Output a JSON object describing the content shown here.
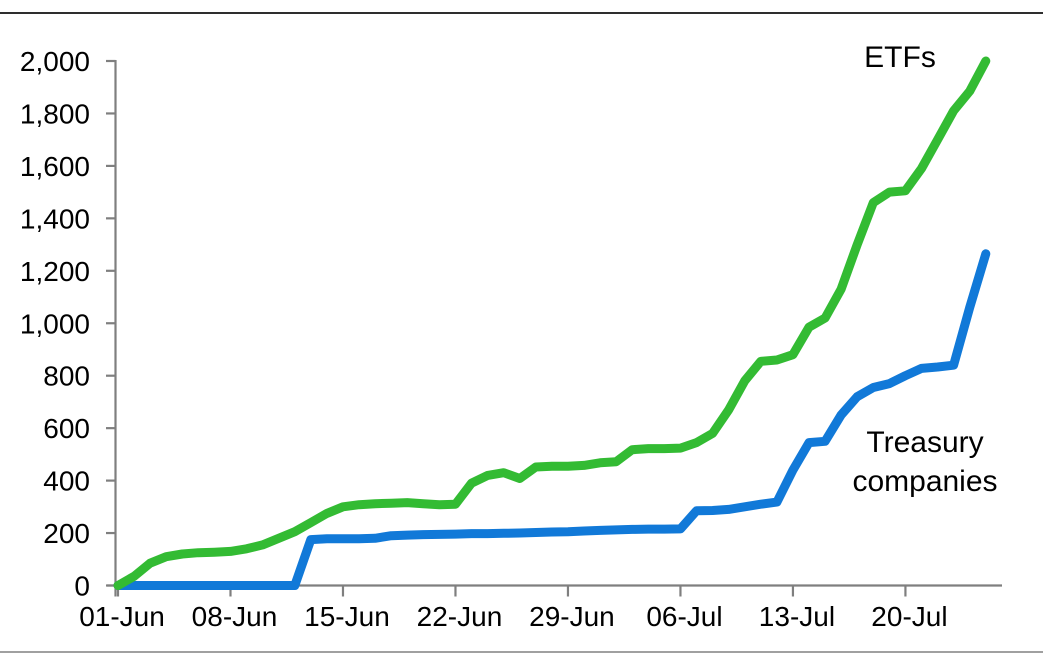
{
  "page": {
    "background": "#ffffff",
    "top_border_color": "#2e2e2e",
    "bottom_border_color": "#a0a0a0"
  },
  "chart_data": {
    "type": "line",
    "title": "",
    "xlabel": "",
    "ylabel": "",
    "grid": false,
    "legend_position": "inline-labels",
    "x_axis": {
      "tick_labels": [
        "01-Jun",
        "08-Jun",
        "15-Jun",
        "22-Jun",
        "29-Jun",
        "06-Jul",
        "13-Jul",
        "20-Jul"
      ],
      "tick_day_indices": [
        0,
        7,
        14,
        21,
        28,
        35,
        42,
        49
      ]
    },
    "y_axis": {
      "min": 0,
      "max": 2000,
      "tick_step": 200,
      "tick_values": [
        0,
        200,
        400,
        600,
        800,
        1000,
        1200,
        1400,
        1600,
        1800,
        2000
      ],
      "tick_labels": [
        "0",
        "200",
        "400",
        "600",
        "800",
        "1,000",
        "1,200",
        "1,400",
        "1,600",
        "1,800",
        "2,000"
      ]
    },
    "x": [
      "01-Jun",
      "02-Jun",
      "03-Jun",
      "04-Jun",
      "05-Jun",
      "06-Jun",
      "07-Jun",
      "08-Jun",
      "09-Jun",
      "10-Jun",
      "11-Jun",
      "12-Jun",
      "13-Jun",
      "14-Jun",
      "15-Jun",
      "16-Jun",
      "17-Jun",
      "18-Jun",
      "19-Jun",
      "20-Jun",
      "21-Jun",
      "22-Jun",
      "23-Jun",
      "24-Jun",
      "25-Jun",
      "26-Jun",
      "27-Jun",
      "28-Jun",
      "29-Jun",
      "30-Jun",
      "01-Jul",
      "02-Jul",
      "03-Jul",
      "04-Jul",
      "05-Jul",
      "06-Jul",
      "07-Jul",
      "08-Jul",
      "09-Jul",
      "10-Jul",
      "11-Jul",
      "12-Jul",
      "13-Jul",
      "14-Jul",
      "15-Jul",
      "16-Jul",
      "17-Jul",
      "18-Jul",
      "19-Jul",
      "20-Jul",
      "21-Jul",
      "22-Jul",
      "23-Jul",
      "24-Jul",
      "25-Jul"
    ],
    "series": [
      {
        "name": "ETFs",
        "color": "#33bb33",
        "values": [
          0,
          35,
          85,
          110,
          120,
          125,
          127,
          130,
          140,
          155,
          180,
          205,
          240,
          275,
          300,
          308,
          312,
          314,
          316,
          312,
          308,
          310,
          390,
          420,
          430,
          408,
          452,
          455,
          455,
          458,
          468,
          472,
          518,
          522,
          522,
          524,
          545,
          580,
          670,
          780,
          855,
          860,
          880,
          985,
          1020,
          1130,
          1300,
          1460,
          1500,
          1505,
          1590,
          1700,
          1810,
          1885,
          2000
        ]
      },
      {
        "name": "Treasury companies",
        "color": "#1179d8",
        "values": [
          0,
          0,
          0,
          0,
          0,
          0,
          0,
          0,
          0,
          0,
          0,
          0,
          175,
          178,
          178,
          178,
          180,
          190,
          192,
          194,
          195,
          196,
          198,
          198,
          199,
          200,
          202,
          204,
          205,
          208,
          210,
          212,
          214,
          215,
          215,
          216,
          285,
          286,
          290,
          300,
          310,
          318,
          440,
          545,
          550,
          650,
          720,
          755,
          770,
          800,
          828,
          833,
          840,
          1060,
          1265
        ]
      }
    ],
    "annotations": [
      {
        "text": "ETFs",
        "series": "ETFs"
      },
      {
        "text_line1": "Treasury",
        "text_line2": "companies",
        "series": "Treasury companies"
      }
    ]
  }
}
